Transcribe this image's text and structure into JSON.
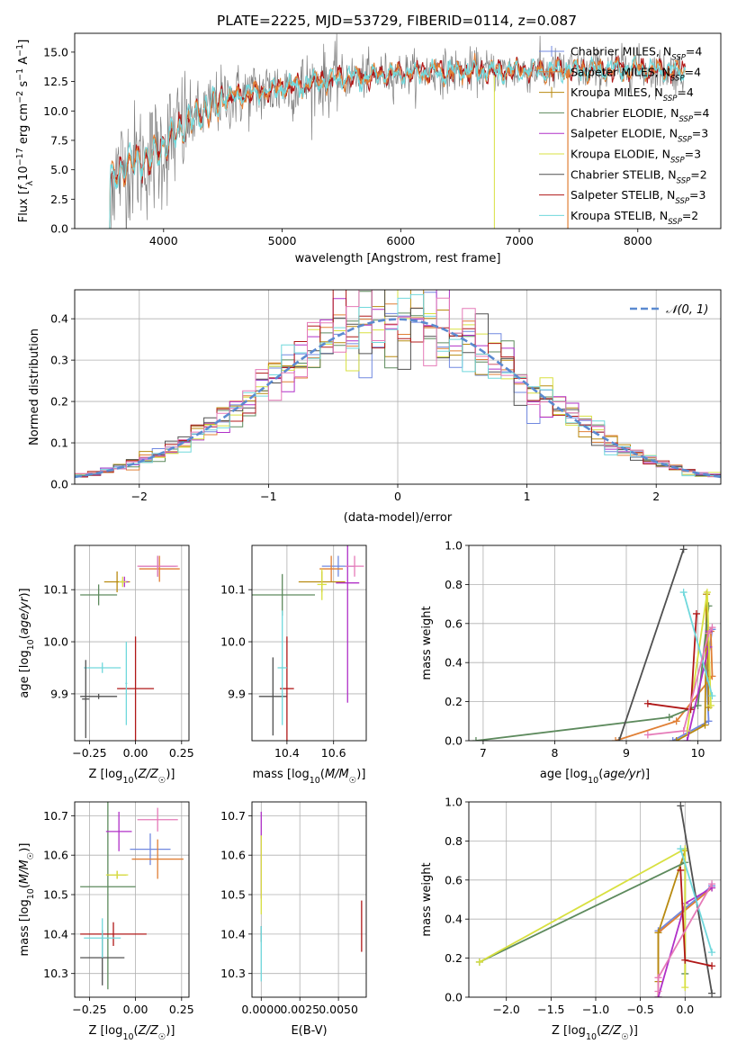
{
  "figure": {
    "title": "PLATE=2225, MJD=53729, FIBERID=0114, z=0.087"
  },
  "colors": {
    "Chabrier MILES": "#7088e0",
    "Salpeter MILES": "#e07f35",
    "Kroupa MILES": "#b88a10",
    "Chabrier ELODIE": "#5d8a5d",
    "Salpeter ELODIE": "#b030c8",
    "Kroupa ELODIE": "#d8e040",
    "Chabrier STELIB": "#505050",
    "Salpeter STELIB": "#b01818",
    "Kroupa STELIB": "#70d8dc",
    "spectrum": "#808080",
    "pink": "#e57ab8",
    "normal": "#5b8ad0"
  },
  "chart_data": [
    {
      "id": "spectrum",
      "type": "line",
      "xlabel": "wavelength [Angstrom, rest frame]",
      "ylabel": "Flux [f_λ 10^-17 erg cm^-2 s^-1 A^-1]",
      "xlim": [
        3250,
        8700
      ],
      "ylim": [
        0,
        16.6
      ],
      "xticks": [
        "4000",
        "5000",
        "6000",
        "7000",
        "8000"
      ],
      "yticks": [
        "0.0",
        "2.5",
        "5.0",
        "7.5",
        "10.0",
        "12.5",
        "15.0"
      ],
      "continuum": [
        [
          3500,
          3.5
        ],
        [
          3700,
          5.5
        ],
        [
          3900,
          6.0
        ],
        [
          4000,
          7.0
        ],
        [
          4200,
          9.0
        ],
        [
          4500,
          11.0
        ],
        [
          5000,
          12.0
        ],
        [
          5500,
          12.8
        ],
        [
          6000,
          13.2
        ],
        [
          6500,
          13.4
        ],
        [
          7000,
          13.4
        ],
        [
          7500,
          13.5
        ],
        [
          8000,
          13.6
        ],
        [
          8500,
          13.3
        ]
      ],
      "legend": [
        {
          "label": "Chabrier MILES, N_SSP=4"
        },
        {
          "label": "Salpeter MILES, N_SSP=4"
        },
        {
          "label": "Kroupa MILES, N_SSP=4"
        },
        {
          "label": "Chabrier ELODIE, N_SSP=4"
        },
        {
          "label": "Salpeter ELODIE, N_SSP=3"
        },
        {
          "label": "Kroupa ELODIE, N_SSP=3"
        },
        {
          "label": "Chabrier STELIB, N_SSP=2"
        },
        {
          "label": "Salpeter STELIB, N_SSP=3"
        },
        {
          "label": "Kroupa STELIB, N_SSP=2"
        }
      ]
    },
    {
      "id": "residuals",
      "type": "step",
      "xlabel": "(data-model)/error",
      "ylabel": "Normed distribution",
      "xlim": [
        -2.5,
        2.5
      ],
      "ylim": [
        0,
        0.47
      ],
      "xticks": [
        "−2",
        "−1",
        "0",
        "1",
        "2"
      ],
      "yticks": [
        "0.0",
        "0.1",
        "0.2",
        "0.3",
        "0.4"
      ],
      "bin_width": 0.1,
      "legend": "𝒩(0, 1)"
    },
    {
      "id": "age-vs-Z",
      "type": "errorbar",
      "xlabel": "Z [log10(Z/Z☉)]",
      "ylabel": "age [log10(age/yr)]",
      "xlim": [
        -0.33,
        0.29
      ],
      "ylim": [
        9.81,
        10.185
      ],
      "xticks": [
        "−0.25",
        "0.00",
        "0.25"
      ],
      "yticks": [
        "9.9",
        "10.0",
        "10.1"
      ],
      "points": [
        {
          "m": "Chabrier MILES",
          "x": 0.12,
          "xerr": 0.1,
          "y": 10.145,
          "yerr": 0.02
        },
        {
          "m": "Salpeter MILES",
          "x": 0.13,
          "xerr": 0.11,
          "y": 10.14,
          "yerr": 0.025
        },
        {
          "m": "Kroupa MILES",
          "x": -0.1,
          "xerr": 0.07,
          "y": 10.115,
          "yerr": 0.02
        },
        {
          "m": "Chabrier ELODIE",
          "x": -0.2,
          "xerr": 0.1,
          "y": 10.09,
          "yerr": 0.02
        },
        {
          "m": "Salpeter ELODIE",
          "x": -0.06,
          "xerr": 0.02,
          "y": 10.115,
          "yerr": 0.01
        },
        {
          "m": "Kroupa ELODIE",
          "x": -0.07,
          "xerr": 0.02,
          "y": 10.115,
          "yerr": 0.01
        },
        {
          "m": "Chabrier STELIB",
          "x": -0.2,
          "xerr": 0.1,
          "y": 9.895,
          "yerr": 0.005
        },
        {
          "m": "Salpeter STELIB",
          "x": 0.0,
          "xerr": 0.1,
          "y": 9.91,
          "yerr": 0.1
        },
        {
          "m": "Kroupa STELIB",
          "x": -0.18,
          "xerr": 0.1,
          "y": 9.95,
          "yerr": 0.01
        },
        {
          "m": "Chabrier STELIB",
          "x": -0.27,
          "xerr": 0.02,
          "y": 9.89,
          "yerr": 0.075
        },
        {
          "m": "Kroupa STELIB",
          "x": -0.05,
          "xerr": 0.005,
          "y": 9.92,
          "yerr": 0.08
        },
        {
          "m": "pink",
          "x": 0.12,
          "xerr": 0.11,
          "y": 10.145,
          "yerr": 0.02
        }
      ]
    },
    {
      "id": "age-vs-mass",
      "type": "errorbar",
      "xlabel": "mass [log10(M/M☉)]",
      "ylabel": "",
      "xlim": [
        10.25,
        10.74
      ],
      "ylim": [
        9.81,
        10.185
      ],
      "xticks": [
        "10.4",
        "10.6"
      ],
      "yticks": [
        "9.9",
        "10.0",
        "10.1"
      ],
      "points": [
        {
          "m": "Chabrier MILES",
          "x": 10.62,
          "xerr": 0.07,
          "y": 10.145,
          "yerr": 0.02
        },
        {
          "m": "Salpeter MILES",
          "x": 10.59,
          "xerr": 0.05,
          "y": 10.14,
          "yerr": 0.025
        },
        {
          "m": "Kroupa MILES",
          "x": 10.55,
          "xerr": 0.1,
          "y": 10.115,
          "yerr": 0.02
        },
        {
          "m": "Chabrier ELODIE",
          "x": 10.38,
          "xerr": 0.14,
          "y": 10.09,
          "yerr": 0.04
        },
        {
          "m": "Salpeter ELODIE",
          "x": 10.66,
          "xerr": 0.05,
          "y": 10.113,
          "yerr": 0.23
        },
        {
          "m": "Kroupa ELODIE",
          "x": 10.55,
          "xerr": 0.02,
          "y": 10.11,
          "yerr": 0.03
        },
        {
          "m": "Chabrier STELIB",
          "x": 10.34,
          "xerr": 0.06,
          "y": 9.895,
          "yerr": 0.075
        },
        {
          "m": "Salpeter STELIB",
          "x": 10.4,
          "xerr": 0.03,
          "y": 9.91,
          "yerr": 0.1
        },
        {
          "m": "Kroupa STELIB",
          "x": 10.38,
          "xerr": 0.02,
          "y": 9.95,
          "yerr": 0.11
        },
        {
          "m": "pink",
          "x": 10.69,
          "xerr": 0.04,
          "y": 10.145,
          "yerr": 0.02
        }
      ]
    },
    {
      "id": "massweight-vs-age",
      "type": "line",
      "xlabel": "age [log10(age/yr)]",
      "ylabel": "mass weight",
      "xlim": [
        6.8,
        10.32
      ],
      "ylim": [
        0,
        1
      ],
      "xticks": [
        "7",
        "8",
        "9",
        "10"
      ],
      "yticks": [
        "0.0",
        "0.2",
        "0.4",
        "0.6",
        "0.8",
        "1.0"
      ],
      "series": [
        {
          "m": "Chabrier MILES",
          "x": [
            9.65,
            10.15,
            10.12,
            10.2
          ],
          "y": [
            0.0,
            0.1,
            0.36,
            0.57
          ]
        },
        {
          "m": "Salpeter MILES",
          "x": [
            8.85,
            9.7,
            10.2,
            10.18
          ],
          "y": [
            0.0,
            0.1,
            0.33,
            0.56
          ]
        },
        {
          "m": "Kroupa MILES",
          "x": [
            9.7,
            10.1,
            10.12,
            10.15
          ],
          "y": [
            0.0,
            0.08,
            0.75,
            0.17
          ]
        },
        {
          "m": "Chabrier ELODIE",
          "x": [
            6.9,
            9.6,
            10.0,
            10.15
          ],
          "y": [
            0.0,
            0.12,
            0.18,
            0.69
          ]
        },
        {
          "m": "Salpeter ELODIE",
          "x": [
            9.85,
            10.15,
            10.15
          ],
          "y": [
            0.0,
            0.48,
            0.56
          ]
        },
        {
          "m": "Kroupa ELODIE",
          "x": [
            9.85,
            10.13,
            10.18
          ],
          "y": [
            0.05,
            0.76,
            0.18
          ]
        },
        {
          "m": "Chabrier STELIB",
          "x": [
            8.9,
            9.8
          ],
          "y": [
            0.0,
            0.98
          ]
        },
        {
          "m": "Salpeter STELIB",
          "x": [
            9.3,
            9.9,
            9.98
          ],
          "y": [
            0.19,
            0.16,
            0.65
          ]
        },
        {
          "m": "Kroupa STELIB",
          "x": [
            9.8,
            10.2
          ],
          "y": [
            0.76,
            0.23
          ]
        },
        {
          "m": "pink",
          "x": [
            9.3,
            9.8,
            10.15,
            10.2
          ],
          "y": [
            0.03,
            0.05,
            0.55,
            0.58
          ]
        }
      ]
    },
    {
      "id": "mass-vs-Z",
      "type": "errorbar",
      "xlabel": "Z [log10(Z/Z☉)]",
      "ylabel": "mass [log10(M/M☉)]",
      "xlim": [
        -0.33,
        0.29
      ],
      "ylim": [
        10.24,
        10.735
      ],
      "xticks": [
        "−0.25",
        "0.00",
        "0.25"
      ],
      "yticks": [
        "10.3",
        "10.4",
        "10.5",
        "10.6",
        "10.7"
      ],
      "points": [
        {
          "m": "Chabrier MILES",
          "x": 0.08,
          "xerr": 0.11,
          "y": 10.615,
          "yerr": 0.04
        },
        {
          "m": "Salpeter MILES",
          "x": 0.12,
          "xerr": 0.14,
          "y": 10.59,
          "yerr": 0.05
        },
        {
          "m": "Kroupa MILES",
          "x": -0.1,
          "xerr": 0.05,
          "y": 10.55,
          "yerr": 0.01
        },
        {
          "m": "Chabrier ELODIE",
          "x": -0.15,
          "xerr": 0.15,
          "y": 10.52,
          "yerr": 0.26
        },
        {
          "m": "Salpeter ELODIE",
          "x": -0.09,
          "xerr": 0.07,
          "y": 10.66,
          "yerr": 0.05
        },
        {
          "m": "Kroupa ELODIE",
          "x": -0.1,
          "xerr": 0.06,
          "y": 10.55,
          "yerr": 0.01
        },
        {
          "m": "Chabrier STELIB",
          "x": -0.18,
          "xerr": 0.12,
          "y": 10.34,
          "yerr": 0.07
        },
        {
          "m": "Salpeter STELIB",
          "x": -0.12,
          "xerr": 0.18,
          "y": 10.4,
          "yerr": 0.03
        },
        {
          "m": "Kroupa STELIB",
          "x": -0.18,
          "xerr": 0.1,
          "y": 10.39,
          "yerr": 0.05
        },
        {
          "m": "pink",
          "x": 0.12,
          "xerr": 0.11,
          "y": 10.69,
          "yerr": 0.03
        }
      ]
    },
    {
      "id": "mass-vs-ebv",
      "type": "errorbar",
      "xlabel": "E(B-V)",
      "ylabel": "",
      "xlim": [
        -0.0006,
        0.0068
      ],
      "ylim": [
        10.24,
        10.735
      ],
      "xticks": [
        "0.0000",
        "0.0025",
        "0.0050"
      ],
      "yticks": [
        "10.3",
        "10.4",
        "10.5",
        "10.6",
        "10.7"
      ],
      "points": [
        {
          "m": "Salpeter ELODIE",
          "x": 0.0,
          "xerr": 0.0,
          "y": 10.6,
          "yerr": 0.11
        },
        {
          "m": "Kroupa ELODIE",
          "x": 0.0,
          "xerr": 0.0,
          "y": 10.55,
          "yerr": 0.1
        },
        {
          "m": "Chabrier STELIB",
          "x": 0.0,
          "xerr": 0.0,
          "y": 10.4,
          "yerr": 0.02
        },
        {
          "m": "Kroupa STELIB",
          "x": 0.0,
          "xerr": 0.0,
          "y": 10.35,
          "yerr": 0.07
        },
        {
          "m": "Salpeter STELIB",
          "x": 0.0065,
          "xerr": 0.0,
          "y": 10.42,
          "yerr": 0.065
        }
      ]
    },
    {
      "id": "massweight-vs-Z",
      "type": "line",
      "xlabel": "Z [log10(Z/Z☉)]",
      "ylabel": "mass weight",
      "xlim": [
        -2.42,
        0.4
      ],
      "ylim": [
        0,
        1
      ],
      "xticks": [
        "−2.0",
        "−1.5",
        "−1.0",
        "−0.5",
        "0.0"
      ],
      "yticks": [
        "0.0",
        "0.2",
        "0.4",
        "0.6",
        "0.8",
        "1.0"
      ],
      "series": [
        {
          "m": "Chabrier MILES",
          "x": [
            -0.3,
            -0.3,
            0.3
          ],
          "y": [
            0.0,
            0.34,
            0.57
          ]
        },
        {
          "m": "Salpeter MILES",
          "x": [
            -0.3,
            -0.3,
            0.3
          ],
          "y": [
            0.0,
            0.33,
            0.56
          ]
        },
        {
          "m": "Kroupa MILES",
          "x": [
            -0.3,
            -0.3,
            0.0
          ],
          "y": [
            0.08,
            0.33,
            0.75
          ]
        },
        {
          "m": "Chabrier ELODIE",
          "x": [
            -2.3,
            0.0,
            0.0
          ],
          "y": [
            0.18,
            0.69,
            0.12
          ]
        },
        {
          "m": "Salpeter ELODIE",
          "x": [
            -0.3,
            0.0,
            0.3
          ],
          "y": [
            0.0,
            0.48,
            0.56
          ]
        },
        {
          "m": "Kroupa ELODIE",
          "x": [
            -2.3,
            0.0,
            0.0
          ],
          "y": [
            0.18,
            0.76,
            0.05
          ]
        },
        {
          "m": "Chabrier STELIB",
          "x": [
            -0.05,
            0.3
          ],
          "y": [
            0.98,
            0.02
          ]
        },
        {
          "m": "Salpeter STELIB",
          "x": [
            -0.05,
            0.0,
            0.3
          ],
          "y": [
            0.65,
            0.19,
            0.16
          ]
        },
        {
          "m": "Kroupa STELIB",
          "x": [
            -0.05,
            0.3
          ],
          "y": [
            0.76,
            0.23
          ]
        },
        {
          "m": "pink",
          "x": [
            -0.3,
            -0.3,
            0.3
          ],
          "y": [
            0.03,
            0.1,
            0.58
          ]
        }
      ]
    }
  ]
}
